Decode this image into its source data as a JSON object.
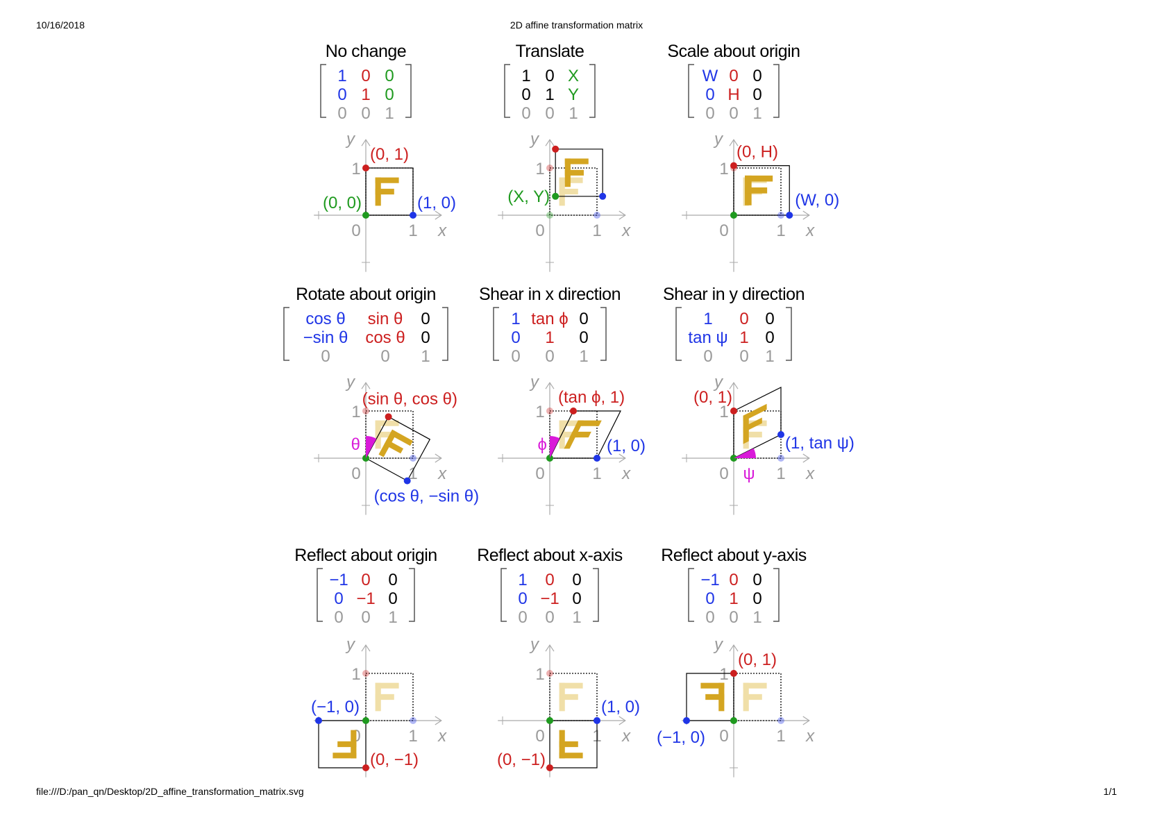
{
  "header": {
    "date": "10/16/2018",
    "title": "2D affine transformation matrix"
  },
  "footer": {
    "path": "file:///D:/pan_qn/Desktop/2D_affine_transformation_matrix.svg",
    "page": "1/1"
  },
  "colors": {
    "blue": "#1f35e6",
    "red": "#cc1f1f",
    "green": "#1f9a1f",
    "grey": "#999999",
    "gold": "#d4a521",
    "gold_faded": "#f0dfa8",
    "magenta": "#d91ad9"
  },
  "axis_labels": {
    "x": "x",
    "y": "y",
    "zero": "0",
    "one": "1"
  },
  "panels": [
    {
      "id": "no-change",
      "title": "No change",
      "matrix": [
        [
          {
            "t": "1",
            "c": "blue"
          },
          {
            "t": "0",
            "c": "red"
          },
          {
            "t": "0",
            "c": "green"
          }
        ],
        [
          {
            "t": "0",
            "c": "blue"
          },
          {
            "t": "1",
            "c": "red"
          },
          {
            "t": "0",
            "c": "green"
          }
        ],
        [
          {
            "t": "0",
            "c": "grey"
          },
          {
            "t": "0",
            "c": "grey"
          },
          {
            "t": "1",
            "c": "grey"
          }
        ]
      ],
      "labels": [
        {
          "t": "(0, 1)",
          "c": "red"
        },
        {
          "t": "(0, 0)",
          "c": "green"
        },
        {
          "t": "(1, 0)",
          "c": "blue"
        }
      ]
    },
    {
      "id": "translate",
      "title": "Translate",
      "matrix": [
        [
          {
            "t": "1",
            "c": "black"
          },
          {
            "t": "0",
            "c": "black"
          },
          {
            "t": "X",
            "c": "green"
          }
        ],
        [
          {
            "t": "0",
            "c": "black"
          },
          {
            "t": "1",
            "c": "black"
          },
          {
            "t": "Y",
            "c": "green"
          }
        ],
        [
          {
            "t": "0",
            "c": "grey"
          },
          {
            "t": "0",
            "c": "grey"
          },
          {
            "t": "1",
            "c": "grey"
          }
        ]
      ],
      "labels": [
        {
          "t": "(X, Y)",
          "c": "green"
        }
      ]
    },
    {
      "id": "scale",
      "title": "Scale about origin",
      "matrix": [
        [
          {
            "t": "W",
            "c": "blue"
          },
          {
            "t": "0",
            "c": "red"
          },
          {
            "t": "0",
            "c": "black"
          }
        ],
        [
          {
            "t": "0",
            "c": "blue"
          },
          {
            "t": "H",
            "c": "red"
          },
          {
            "t": "0",
            "c": "black"
          }
        ],
        [
          {
            "t": "0",
            "c": "grey"
          },
          {
            "t": "0",
            "c": "grey"
          },
          {
            "t": "1",
            "c": "grey"
          }
        ]
      ],
      "labels": [
        {
          "t": "(0, H)",
          "c": "red"
        },
        {
          "t": "(W, 0)",
          "c": "blue"
        }
      ]
    },
    {
      "id": "rotate",
      "title": "Rotate about origin",
      "matrix": [
        [
          {
            "t": "cos θ",
            "c": "blue"
          },
          {
            "t": "sin θ",
            "c": "red"
          },
          {
            "t": "0",
            "c": "black"
          }
        ],
        [
          {
            "t": "−sin θ",
            "c": "blue"
          },
          {
            "t": "cos θ",
            "c": "red"
          },
          {
            "t": "0",
            "c": "black"
          }
        ],
        [
          {
            "t": "0",
            "c": "grey"
          },
          {
            "t": "0",
            "c": "grey"
          },
          {
            "t": "1",
            "c": "grey"
          }
        ]
      ],
      "labels": [
        {
          "t": "(sin θ, cos θ)",
          "c": "red"
        },
        {
          "t": "θ",
          "c": "magenta"
        },
        {
          "t": "(cos θ, −sin θ)",
          "c": "blue"
        }
      ]
    },
    {
      "id": "shear-x",
      "title": "Shear in x direction",
      "matrix": [
        [
          {
            "t": "1",
            "c": "blue"
          },
          {
            "t": "tan ϕ",
            "c": "red"
          },
          {
            "t": "0",
            "c": "black"
          }
        ],
        [
          {
            "t": "0",
            "c": "blue"
          },
          {
            "t": "1",
            "c": "red"
          },
          {
            "t": "0",
            "c": "black"
          }
        ],
        [
          {
            "t": "0",
            "c": "grey"
          },
          {
            "t": "0",
            "c": "grey"
          },
          {
            "t": "1",
            "c": "grey"
          }
        ]
      ],
      "labels": [
        {
          "t": "(tan ϕ, 1)",
          "c": "red"
        },
        {
          "t": "ϕ",
          "c": "magenta"
        },
        {
          "t": "(1, 0)",
          "c": "blue"
        }
      ]
    },
    {
      "id": "shear-y",
      "title": "Shear in y direction",
      "matrix": [
        [
          {
            "t": "1",
            "c": "blue"
          },
          {
            "t": "0",
            "c": "red"
          },
          {
            "t": "0",
            "c": "black"
          }
        ],
        [
          {
            "t": "tan ψ",
            "c": "blue"
          },
          {
            "t": "1",
            "c": "red"
          },
          {
            "t": "0",
            "c": "black"
          }
        ],
        [
          {
            "t": "0",
            "c": "grey"
          },
          {
            "t": "0",
            "c": "grey"
          },
          {
            "t": "1",
            "c": "grey"
          }
        ]
      ],
      "labels": [
        {
          "t": "(0, 1)",
          "c": "red"
        },
        {
          "t": "(1, tan ψ)",
          "c": "blue"
        },
        {
          "t": "ψ",
          "c": "magenta"
        }
      ]
    },
    {
      "id": "reflect-origin",
      "title": "Reflect about origin",
      "matrix": [
        [
          {
            "t": "−1",
            "c": "blue"
          },
          {
            "t": "0",
            "c": "red"
          },
          {
            "t": "0",
            "c": "black"
          }
        ],
        [
          {
            "t": "0",
            "c": "blue"
          },
          {
            "t": "−1",
            "c": "red"
          },
          {
            "t": "0",
            "c": "black"
          }
        ],
        [
          {
            "t": "0",
            "c": "grey"
          },
          {
            "t": "0",
            "c": "grey"
          },
          {
            "t": "1",
            "c": "grey"
          }
        ]
      ],
      "labels": [
        {
          "t": "(−1, 0)",
          "c": "blue"
        },
        {
          "t": "(0, −1)",
          "c": "red"
        }
      ]
    },
    {
      "id": "reflect-x",
      "title": "Reflect about x-axis",
      "matrix": [
        [
          {
            "t": "1",
            "c": "blue"
          },
          {
            "t": "0",
            "c": "red"
          },
          {
            "t": "0",
            "c": "black"
          }
        ],
        [
          {
            "t": "0",
            "c": "blue"
          },
          {
            "t": "−1",
            "c": "red"
          },
          {
            "t": "0",
            "c": "black"
          }
        ],
        [
          {
            "t": "0",
            "c": "grey"
          },
          {
            "t": "0",
            "c": "grey"
          },
          {
            "t": "1",
            "c": "grey"
          }
        ]
      ],
      "labels": [
        {
          "t": "(1, 0)",
          "c": "blue"
        },
        {
          "t": "(0, −1)",
          "c": "red"
        }
      ]
    },
    {
      "id": "reflect-y",
      "title": "Reflect about y-axis",
      "matrix": [
        [
          {
            "t": "−1",
            "c": "blue"
          },
          {
            "t": "0",
            "c": "red"
          },
          {
            "t": "0",
            "c": "black"
          }
        ],
        [
          {
            "t": "0",
            "c": "blue"
          },
          {
            "t": "1",
            "c": "red"
          },
          {
            "t": "0",
            "c": "black"
          }
        ],
        [
          {
            "t": "0",
            "c": "grey"
          },
          {
            "t": "0",
            "c": "grey"
          },
          {
            "t": "1",
            "c": "grey"
          }
        ]
      ],
      "labels": [
        {
          "t": "(0, 1)",
          "c": "red"
        },
        {
          "t": "(−1, 0)",
          "c": "blue"
        }
      ]
    }
  ]
}
